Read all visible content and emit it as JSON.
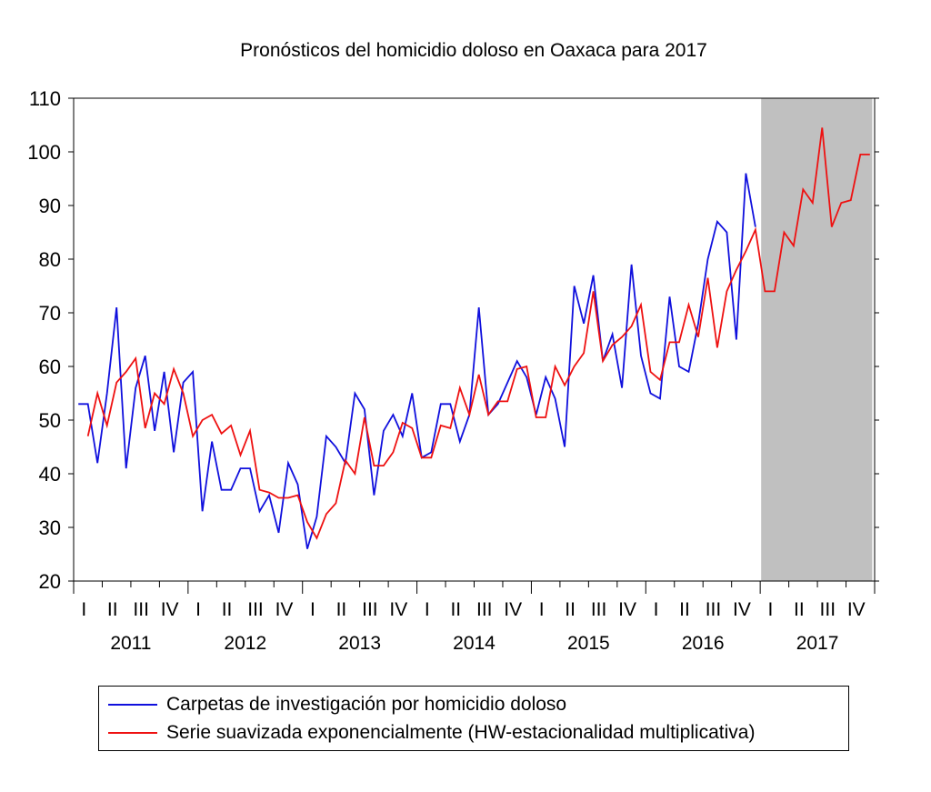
{
  "chart_data": {
    "type": "line",
    "title": "Pronósticos del homicidio doloso en Oaxaca para 2017",
    "xlabel": "",
    "ylabel": "",
    "ylim": [
      20,
      110
    ],
    "yticks": [
      "20",
      "30",
      "40",
      "50",
      "60",
      "70",
      "80",
      "90",
      "100",
      "110"
    ],
    "quarter_labels": [
      "I",
      "II",
      "III",
      "IV"
    ],
    "years": [
      "2011",
      "2012",
      "2013",
      "2014",
      "2015",
      "2016",
      "2017"
    ],
    "forecast_period": {
      "start": "2017-01",
      "end": "2017-12",
      "shading": "#c0c0c0"
    },
    "series": [
      {
        "name": "Carpetas de investigación por homicidio doloso",
        "color": "#1010dd",
        "start": "2011-01",
        "values": [
          53,
          53,
          42,
          55,
          71,
          41,
          56,
          62,
          48,
          59,
          44,
          57,
          59,
          33,
          46,
          37,
          37,
          41,
          41,
          33,
          36,
          29,
          42,
          38,
          26,
          32,
          47,
          45,
          42,
          55,
          52,
          36,
          48,
          51,
          47,
          55,
          43,
          44,
          53,
          53,
          46,
          51,
          71,
          51,
          53,
          57,
          61,
          58,
          51,
          58,
          54,
          45,
          75,
          68,
          77,
          61,
          66,
          56,
          79,
          62,
          55,
          54,
          73,
          60,
          59,
          68,
          80,
          87,
          85,
          65,
          96,
          86
        ]
      },
      {
        "name": "Serie suavizada exponencialmente (HW-estacionalidad multiplicativa)",
        "color": "#ee1111",
        "start": "2011-02",
        "values": [
          47,
          55,
          49,
          57,
          59,
          61.5,
          48.5,
          55,
          53,
          59.5,
          55,
          47,
          50,
          51,
          47.5,
          49,
          43.5,
          48,
          37,
          36.5,
          35.5,
          35.5,
          36,
          31,
          28,
          32.5,
          34.5,
          42.5,
          40,
          50.5,
          41.5,
          41.5,
          44,
          49.5,
          48.5,
          43,
          43,
          49,
          48.5,
          56,
          51,
          58.5,
          51,
          53.5,
          53.5,
          59.5,
          60,
          50.5,
          50.5,
          60,
          56.5,
          60,
          62.5,
          74,
          61,
          64,
          65.5,
          67.5,
          71.5,
          59,
          57.5,
          64.5,
          64.5,
          71.5,
          65.5,
          76.5,
          63.5,
          74,
          78,
          81.5,
          85.5,
          74,
          74,
          85,
          82.5,
          93,
          90.5,
          104.5,
          86,
          90.5,
          91,
          99.5,
          99.5
        ]
      }
    ],
    "legend_position": "bottom"
  },
  "legend": {
    "items": [
      {
        "label": "Carpetas de investigación por homicidio doloso",
        "color": "#1010dd"
      },
      {
        "label": "Serie suavizada exponencialmente (HW-estacionalidad multiplicativa)",
        "color": "#ee1111"
      }
    ]
  }
}
